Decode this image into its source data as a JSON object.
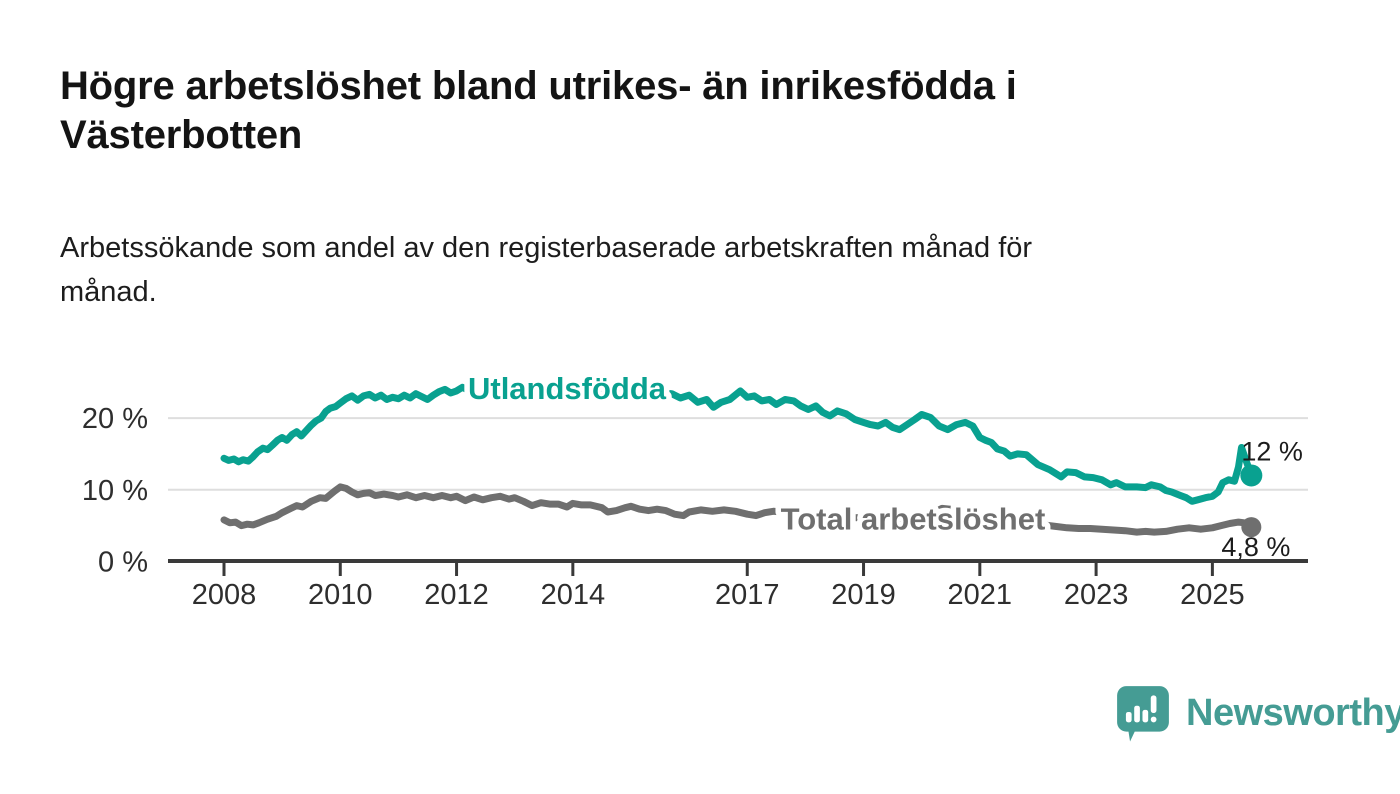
{
  "header": {
    "title": "Högre arbetslöshet bland utrikes- än inrikesfödda i\nVästerbotten",
    "subtitle": "Arbetssökande som andel av den registerbaserade arbetskraften månad för\nmånad."
  },
  "branding": {
    "wordmark": "Newsworthy",
    "logo_color": "#459c94"
  },
  "chart_data": {
    "type": "line",
    "title": "Högre arbetslöshet bland utrikes- än inrikesfödda i Västerbotten",
    "subtitle": "Arbetssökande som andel av den registerbaserade arbetskraften månad för månad.",
    "unit": "%",
    "x_axis": {
      "ticks": [
        2008,
        2010,
        2012,
        2014,
        2017,
        2019,
        2021,
        2023,
        2025
      ],
      "range": [
        2007.05,
        2026.6
      ]
    },
    "y_axis": {
      "ticks": [
        {
          "value": 0,
          "label": "0 %"
        },
        {
          "value": 10,
          "label": "10 %"
        },
        {
          "value": 20,
          "label": "20 %"
        }
      ],
      "range": [
        0,
        26
      ],
      "grid": true
    },
    "series": [
      {
        "name": "Utlandsfödda",
        "color": "#09a190",
        "label_pos": [
          2013.9,
          24.1
        ],
        "end_label": "12 %",
        "end_value": 12,
        "points": [
          [
            2008.0,
            14.4
          ],
          [
            2008.08,
            14.1
          ],
          [
            2008.17,
            14.3
          ],
          [
            2008.25,
            13.9
          ],
          [
            2008.33,
            14.2
          ],
          [
            2008.42,
            14.0
          ],
          [
            2008.5,
            14.6
          ],
          [
            2008.58,
            15.3
          ],
          [
            2008.67,
            15.8
          ],
          [
            2008.75,
            15.6
          ],
          [
            2008.83,
            16.2
          ],
          [
            2008.92,
            16.9
          ],
          [
            2009.0,
            17.3
          ],
          [
            2009.08,
            16.9
          ],
          [
            2009.17,
            17.7
          ],
          [
            2009.25,
            18.1
          ],
          [
            2009.33,
            17.5
          ],
          [
            2009.42,
            18.3
          ],
          [
            2009.5,
            19.0
          ],
          [
            2009.58,
            19.6
          ],
          [
            2009.67,
            20.0
          ],
          [
            2009.75,
            20.9
          ],
          [
            2009.83,
            21.4
          ],
          [
            2009.92,
            21.6
          ],
          [
            2010.0,
            22.1
          ],
          [
            2010.1,
            22.7
          ],
          [
            2010.2,
            23.1
          ],
          [
            2010.3,
            22.5
          ],
          [
            2010.4,
            23.1
          ],
          [
            2010.5,
            23.3
          ],
          [
            2010.6,
            22.8
          ],
          [
            2010.7,
            23.2
          ],
          [
            2010.8,
            22.6
          ],
          [
            2010.9,
            22.9
          ],
          [
            2011.0,
            22.7
          ],
          [
            2011.1,
            23.2
          ],
          [
            2011.2,
            22.8
          ],
          [
            2011.3,
            23.4
          ],
          [
            2011.4,
            23.0
          ],
          [
            2011.5,
            22.6
          ],
          [
            2011.6,
            23.2
          ],
          [
            2011.7,
            23.7
          ],
          [
            2011.8,
            24.0
          ],
          [
            2011.9,
            23.5
          ],
          [
            2012.0,
            23.8
          ],
          [
            2012.1,
            24.3
          ],
          [
            2012.2,
            23.9
          ],
          [
            2012.3,
            24.2
          ],
          [
            2012.45,
            23.8
          ],
          [
            2012.6,
            24.0
          ],
          [
            2012.75,
            23.6
          ],
          [
            2012.9,
            23.9
          ],
          [
            2013.05,
            23.5
          ],
          [
            2013.2,
            23.8
          ],
          [
            2013.4,
            23.4
          ],
          [
            2013.6,
            23.7
          ],
          [
            2013.8,
            23.3
          ],
          [
            2014.0,
            23.6
          ],
          [
            2014.2,
            23.2
          ],
          [
            2014.4,
            23.5
          ],
          [
            2014.6,
            23.1
          ],
          [
            2014.8,
            23.4
          ],
          [
            2015.0,
            23.0
          ],
          [
            2015.2,
            23.3
          ],
          [
            2015.4,
            22.9
          ],
          [
            2015.55,
            23.5
          ],
          [
            2015.7,
            23.4
          ],
          [
            2015.85,
            22.8
          ],
          [
            2016.0,
            23.2
          ],
          [
            2016.15,
            22.2
          ],
          [
            2016.3,
            22.6
          ],
          [
            2016.42,
            21.5
          ],
          [
            2016.55,
            22.2
          ],
          [
            2016.7,
            22.6
          ],
          [
            2016.88,
            23.8
          ],
          [
            2017.0,
            22.9
          ],
          [
            2017.12,
            23.1
          ],
          [
            2017.25,
            22.4
          ],
          [
            2017.38,
            22.6
          ],
          [
            2017.5,
            21.9
          ],
          [
            2017.65,
            22.6
          ],
          [
            2017.8,
            22.4
          ],
          [
            2017.92,
            21.7
          ],
          [
            2018.05,
            21.2
          ],
          [
            2018.18,
            21.7
          ],
          [
            2018.3,
            20.8
          ],
          [
            2018.42,
            20.3
          ],
          [
            2018.55,
            21.0
          ],
          [
            2018.7,
            20.6
          ],
          [
            2018.85,
            19.8
          ],
          [
            2019.0,
            19.4
          ],
          [
            2019.12,
            19.1
          ],
          [
            2019.25,
            18.9
          ],
          [
            2019.38,
            19.4
          ],
          [
            2019.5,
            18.7
          ],
          [
            2019.62,
            18.4
          ],
          [
            2019.75,
            19.1
          ],
          [
            2019.88,
            19.8
          ],
          [
            2020.0,
            20.5
          ],
          [
            2020.15,
            20.1
          ],
          [
            2020.3,
            18.9
          ],
          [
            2020.45,
            18.4
          ],
          [
            2020.6,
            19.1
          ],
          [
            2020.75,
            19.4
          ],
          [
            2020.88,
            18.9
          ],
          [
            2021.0,
            17.3
          ],
          [
            2021.1,
            16.9
          ],
          [
            2021.2,
            16.6
          ],
          [
            2021.3,
            15.7
          ],
          [
            2021.42,
            15.4
          ],
          [
            2021.52,
            14.7
          ],
          [
            2021.65,
            15.0
          ],
          [
            2021.8,
            14.9
          ],
          [
            2022.0,
            13.5
          ],
          [
            2022.2,
            12.8
          ],
          [
            2022.4,
            11.8
          ],
          [
            2022.5,
            12.5
          ],
          [
            2022.65,
            12.4
          ],
          [
            2022.8,
            11.8
          ],
          [
            2022.95,
            11.7
          ],
          [
            2023.1,
            11.4
          ],
          [
            2023.25,
            10.7
          ],
          [
            2023.35,
            11.0
          ],
          [
            2023.5,
            10.4
          ],
          [
            2023.7,
            10.4
          ],
          [
            2023.85,
            10.3
          ],
          [
            2023.95,
            10.7
          ],
          [
            2024.1,
            10.4
          ],
          [
            2024.2,
            9.9
          ],
          [
            2024.3,
            9.7
          ],
          [
            2024.45,
            9.2
          ],
          [
            2024.55,
            8.9
          ],
          [
            2024.65,
            8.4
          ],
          [
            2024.75,
            8.6
          ],
          [
            2024.88,
            8.9
          ],
          [
            2025.0,
            9.1
          ],
          [
            2025.1,
            9.7
          ],
          [
            2025.18,
            11.0
          ],
          [
            2025.28,
            11.4
          ],
          [
            2025.38,
            11.2
          ],
          [
            2025.45,
            13.2
          ],
          [
            2025.5,
            15.9
          ],
          [
            2025.67,
            12.0
          ]
        ]
      },
      {
        "name": "Total arbetslöshet",
        "color": "#6f6f6f",
        "label_pos": [
          2019.85,
          5.9
        ],
        "end_label": "4,8 %",
        "end_value": 4.8,
        "points": [
          [
            2008.0,
            5.8
          ],
          [
            2008.1,
            5.4
          ],
          [
            2008.2,
            5.5
          ],
          [
            2008.3,
            5.0
          ],
          [
            2008.4,
            5.2
          ],
          [
            2008.5,
            5.1
          ],
          [
            2008.6,
            5.4
          ],
          [
            2008.75,
            5.9
          ],
          [
            2008.9,
            6.3
          ],
          [
            2009.0,
            6.8
          ],
          [
            2009.15,
            7.4
          ],
          [
            2009.25,
            7.8
          ],
          [
            2009.35,
            7.6
          ],
          [
            2009.5,
            8.4
          ],
          [
            2009.65,
            8.9
          ],
          [
            2009.75,
            8.8
          ],
          [
            2009.9,
            9.8
          ],
          [
            2010.0,
            10.4
          ],
          [
            2010.1,
            10.2
          ],
          [
            2010.2,
            9.7
          ],
          [
            2010.3,
            9.3
          ],
          [
            2010.4,
            9.5
          ],
          [
            2010.5,
            9.6
          ],
          [
            2010.6,
            9.2
          ],
          [
            2010.75,
            9.4
          ],
          [
            2010.9,
            9.2
          ],
          [
            2011.0,
            9.0
          ],
          [
            2011.15,
            9.3
          ],
          [
            2011.3,
            8.9
          ],
          [
            2011.45,
            9.2
          ],
          [
            2011.6,
            8.9
          ],
          [
            2011.75,
            9.2
          ],
          [
            2011.9,
            8.9
          ],
          [
            2012.0,
            9.1
          ],
          [
            2012.15,
            8.5
          ],
          [
            2012.3,
            9.0
          ],
          [
            2012.45,
            8.6
          ],
          [
            2012.6,
            8.9
          ],
          [
            2012.75,
            9.1
          ],
          [
            2012.9,
            8.7
          ],
          [
            2013.0,
            8.9
          ],
          [
            2013.15,
            8.4
          ],
          [
            2013.3,
            7.8
          ],
          [
            2013.45,
            8.2
          ],
          [
            2013.6,
            8.0
          ],
          [
            2013.75,
            8.0
          ],
          [
            2013.9,
            7.6
          ],
          [
            2014.0,
            8.1
          ],
          [
            2014.15,
            7.9
          ],
          [
            2014.3,
            7.9
          ],
          [
            2014.5,
            7.5
          ],
          [
            2014.6,
            6.9
          ],
          [
            2014.75,
            7.1
          ],
          [
            2014.9,
            7.5
          ],
          [
            2015.0,
            7.7
          ],
          [
            2015.15,
            7.3
          ],
          [
            2015.3,
            7.1
          ],
          [
            2015.45,
            7.3
          ],
          [
            2015.6,
            7.1
          ],
          [
            2015.75,
            6.6
          ],
          [
            2015.9,
            6.4
          ],
          [
            2016.0,
            6.9
          ],
          [
            2016.2,
            7.2
          ],
          [
            2016.4,
            7.0
          ],
          [
            2016.6,
            7.2
          ],
          [
            2016.8,
            7.0
          ],
          [
            2017.0,
            6.6
          ],
          [
            2017.15,
            6.4
          ],
          [
            2017.3,
            6.8
          ],
          [
            2017.45,
            7.0
          ],
          [
            2017.6,
            6.9
          ],
          [
            2017.8,
            6.6
          ],
          [
            2018.0,
            6.5
          ],
          [
            2018.3,
            6.4
          ],
          [
            2018.6,
            6.2
          ],
          [
            2018.9,
            6.1
          ],
          [
            2019.2,
            6.0
          ],
          [
            2019.5,
            5.9
          ],
          [
            2019.8,
            6.0
          ],
          [
            2020.1,
            6.4
          ],
          [
            2020.35,
            7.4
          ],
          [
            2020.6,
            7.2
          ],
          [
            2020.9,
            6.9
          ],
          [
            2021.2,
            6.4
          ],
          [
            2021.5,
            6.0
          ],
          [
            2021.8,
            5.6
          ],
          [
            2022.0,
            5.2
          ],
          [
            2022.3,
            4.9
          ],
          [
            2022.5,
            4.7
          ],
          [
            2022.7,
            4.6
          ],
          [
            2022.9,
            4.6
          ],
          [
            2023.1,
            4.5
          ],
          [
            2023.3,
            4.4
          ],
          [
            2023.5,
            4.3
          ],
          [
            2023.7,
            4.1
          ],
          [
            2023.85,
            4.2
          ],
          [
            2024.0,
            4.1
          ],
          [
            2024.2,
            4.2
          ],
          [
            2024.4,
            4.5
          ],
          [
            2024.6,
            4.7
          ],
          [
            2024.8,
            4.5
          ],
          [
            2025.0,
            4.7
          ],
          [
            2025.15,
            5.0
          ],
          [
            2025.3,
            5.3
          ],
          [
            2025.45,
            5.5
          ],
          [
            2025.55,
            5.4
          ],
          [
            2025.67,
            4.8
          ]
        ]
      }
    ]
  }
}
